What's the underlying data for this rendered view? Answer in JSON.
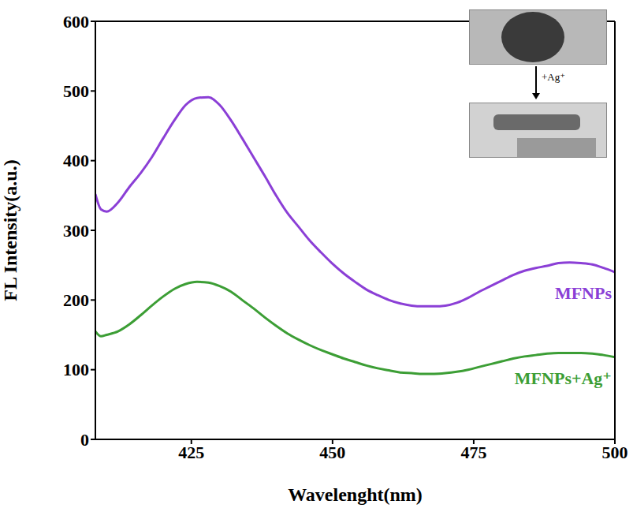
{
  "chart_data": {
    "type": "line",
    "x_label": "Wavelenght(nm)",
    "y_label": "FL Intensity(a.u.)",
    "xlim": [
      408,
      500
    ],
    "xticks": [
      425,
      450,
      475,
      500
    ],
    "ylim": [
      0,
      600
    ],
    "yticks": [
      0,
      100,
      200,
      300,
      400,
      500,
      600
    ],
    "grid": false,
    "x": [
      408,
      409,
      410,
      412,
      414,
      416,
      418,
      420,
      422,
      424,
      426,
      428,
      430,
      432,
      434,
      436,
      438,
      440,
      442,
      444,
      446,
      448,
      450,
      452,
      454,
      456,
      458,
      460,
      462,
      464,
      466,
      468,
      470,
      472,
      474,
      476,
      478,
      480,
      482,
      484,
      486,
      488,
      490,
      492,
      494,
      496,
      498,
      500
    ],
    "series": [
      {
        "name": "MFNPs",
        "color": "#8b3fd6",
        "values": [
          352,
          330,
          327,
          340,
          362,
          382,
          405,
          432,
          458,
          480,
          490,
          491,
          480,
          458,
          432,
          405,
          378,
          350,
          325,
          305,
          285,
          268,
          252,
          238,
          226,
          215,
          207,
          200,
          195,
          192,
          191,
          191,
          192,
          196,
          203,
          212,
          220,
          228,
          236,
          242,
          246,
          249,
          253,
          254,
          253,
          251,
          246,
          240
        ]
      },
      {
        "name": "MFNPs+Ag⁺",
        "color": "#3c9e35",
        "values": [
          155,
          148,
          150,
          155,
          165,
          178,
          192,
          205,
          216,
          223,
          226,
          225,
          220,
          212,
          200,
          188,
          175,
          163,
          152,
          143,
          135,
          128,
          122,
          116,
          111,
          106,
          102,
          99,
          96,
          95,
          94,
          94,
          95,
          97,
          100,
          104,
          108,
          112,
          116,
          119,
          121,
          123,
          124,
          124,
          124,
          123,
          121,
          118
        ]
      }
    ],
    "annotations": [
      "+Ag⁺"
    ]
  }
}
